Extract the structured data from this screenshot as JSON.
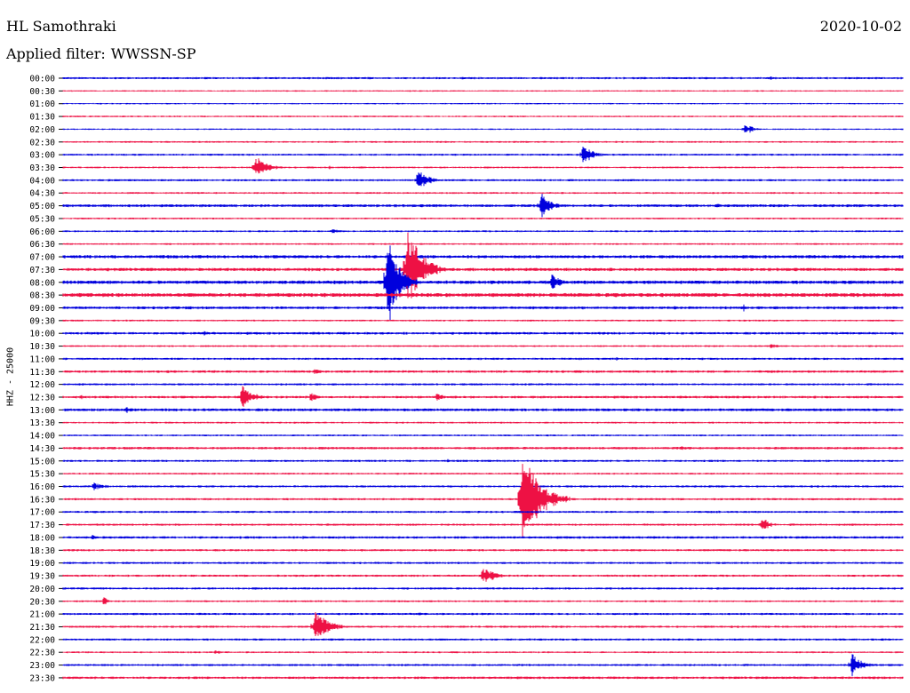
{
  "header": {
    "station": "HL Samothraki",
    "date": "2020-10-02",
    "filter_label": "Applied filter:",
    "filter_value": "WWSSN-SP"
  },
  "chart_data": {
    "type": "line",
    "ylabel": "HHZ - 25000",
    "row_labels": [
      "00:00",
      "00:30",
      "01:00",
      "01:30",
      "02:00",
      "02:30",
      "03:00",
      "03:30",
      "04:00",
      "04:30",
      "05:00",
      "05:30",
      "06:00",
      "06:30",
      "07:00",
      "07:30",
      "08:00",
      "08:30",
      "09:00",
      "09:30",
      "10:00",
      "10:30",
      "11:00",
      "11:30",
      "12:00",
      "12:30",
      "13:00",
      "13:30",
      "14:00",
      "14:30",
      "15:00",
      "15:30",
      "16:00",
      "16:30",
      "17:00",
      "17:30",
      "18:00",
      "18:30",
      "19:00",
      "19:30",
      "20:00",
      "20:30",
      "21:00",
      "21:30",
      "22:00",
      "22:30",
      "23:00",
      "23:30"
    ],
    "colors": {
      "even": "#0000dd",
      "odd": "#ee1144"
    },
    "noise": [
      1.2,
      0.8,
      0.8,
      0.9,
      0.8,
      1.0,
      1.1,
      1.0,
      1.2,
      1.0,
      1.6,
      1.0,
      1.0,
      1.0,
      1.8,
      1.8,
      2.0,
      2.2,
      1.6,
      1.0,
      1.4,
      1.0,
      1.2,
      1.4,
      1.2,
      1.4,
      1.6,
      1.0,
      1.0,
      1.4,
      1.2,
      1.0,
      1.2,
      1.2,
      1.2,
      1.2,
      1.4,
      1.2,
      1.2,
      1.2,
      1.2,
      1.0,
      1.2,
      1.2,
      1.2,
      1.0,
      1.2,
      1.4
    ],
    "minute_range": [
      0,
      30
    ],
    "events": [
      {
        "row": 0,
        "t": 25.2,
        "amp": 2,
        "dur": 0.8
      },
      {
        "row": 4,
        "t": 24.3,
        "amp": 7,
        "dur": 0.9
      },
      {
        "row": 6,
        "t": 1.7,
        "amp": 2,
        "dur": 0.3
      },
      {
        "row": 6,
        "t": 18.5,
        "amp": 13,
        "dur": 1.0
      },
      {
        "row": 7,
        "t": 6.8,
        "amp": 13,
        "dur": 1.2
      },
      {
        "row": 7,
        "t": 9.5,
        "amp": 2,
        "dur": 0.3
      },
      {
        "row": 7,
        "t": 10.5,
        "amp": 2,
        "dur": 0.8
      },
      {
        "row": 8,
        "t": 12.6,
        "amp": 15,
        "dur": 1.0
      },
      {
        "row": 10,
        "t": 5.0,
        "amp": 2,
        "dur": 1.2
      },
      {
        "row": 10,
        "t": 17.0,
        "amp": 15,
        "dur": 1.0
      },
      {
        "row": 10,
        "t": 23.3,
        "amp": 3,
        "dur": 0.8
      },
      {
        "row": 12,
        "t": 9.5,
        "amp": 3,
        "dur": 1.1
      },
      {
        "row": 15,
        "t": 12.2,
        "amp": 50,
        "dur": 1.5
      },
      {
        "row": 15,
        "t": 19.5,
        "amp": 3,
        "dur": 0.5
      },
      {
        "row": 16,
        "t": 11.5,
        "amp": 55,
        "dur": 1.2
      },
      {
        "row": 16,
        "t": 17.4,
        "amp": 12,
        "dur": 0.8
      },
      {
        "row": 17,
        "t": 14.2,
        "amp": 2,
        "dur": 1.0
      },
      {
        "row": 17,
        "t": 24.0,
        "amp": 2,
        "dur": 0.3
      },
      {
        "row": 18,
        "t": 4.3,
        "amp": 2,
        "dur": 0.3
      },
      {
        "row": 18,
        "t": 21.8,
        "amp": 3,
        "dur": 0.4
      },
      {
        "row": 18,
        "t": 24.3,
        "amp": 8,
        "dur": 0.1
      },
      {
        "row": 20,
        "t": 5.0,
        "amp": 3,
        "dur": 0.6
      },
      {
        "row": 21,
        "t": 25.2,
        "amp": 3,
        "dur": 1.0
      },
      {
        "row": 22,
        "t": 19.7,
        "amp": 2,
        "dur": 0.8
      },
      {
        "row": 23,
        "t": 8.9,
        "amp": 4,
        "dur": 0.8
      },
      {
        "row": 25,
        "t": 0.6,
        "amp": 4,
        "dur": 0.3
      },
      {
        "row": 25,
        "t": 6.3,
        "amp": 17,
        "dur": 1.1
      },
      {
        "row": 25,
        "t": 8.8,
        "amp": 7,
        "dur": 0.6
      },
      {
        "row": 25,
        "t": 13.3,
        "amp": 6,
        "dur": 0.7
      },
      {
        "row": 25,
        "t": 23.3,
        "amp": 2,
        "dur": 0.3
      },
      {
        "row": 26,
        "t": 2.2,
        "amp": 4,
        "dur": 0.6
      },
      {
        "row": 29,
        "t": 22.0,
        "amp": 3,
        "dur": 0.6
      },
      {
        "row": 30,
        "t": 13.7,
        "amp": 3,
        "dur": 0.3
      },
      {
        "row": 32,
        "t": 1.0,
        "amp": 5,
        "dur": 1.2
      },
      {
        "row": 33,
        "t": 16.3,
        "amp": 55,
        "dur": 1.8
      },
      {
        "row": 34,
        "t": 23.4,
        "amp": 2,
        "dur": 0.3
      },
      {
        "row": 35,
        "t": 24.9,
        "amp": 10,
        "dur": 0.8
      },
      {
        "row": 36,
        "t": 1.0,
        "amp": 3,
        "dur": 0.6
      },
      {
        "row": 36,
        "t": 8.5,
        "amp": 2,
        "dur": 0.8
      },
      {
        "row": 38,
        "t": 25.2,
        "amp": 2,
        "dur": 0.3
      },
      {
        "row": 39,
        "t": 14.9,
        "amp": 10,
        "dur": 1.3
      },
      {
        "row": 41,
        "t": 1.4,
        "amp": 7,
        "dur": 0.4
      },
      {
        "row": 42,
        "t": 12.6,
        "amp": 2,
        "dur": 1.2
      },
      {
        "row": 43,
        "t": 8.9,
        "amp": 18,
        "dur": 1.5
      },
      {
        "row": 45,
        "t": 5.4,
        "amp": 3,
        "dur": 0.6
      },
      {
        "row": 46,
        "t": 28.1,
        "amp": 14,
        "dur": 1.0
      }
    ]
  }
}
